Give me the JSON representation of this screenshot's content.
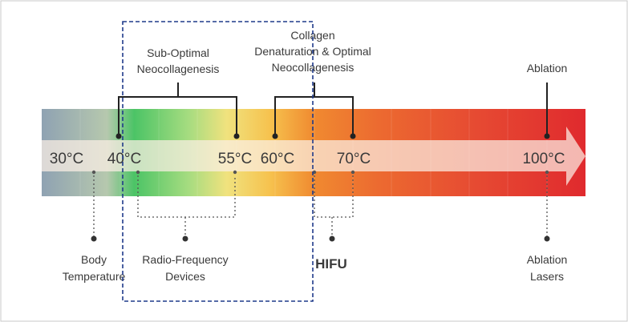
{
  "temperatures": [
    "30°C",
    "40°C",
    "55°C",
    "60°C",
    "70°C",
    "100°C"
  ],
  "upper_labels": {
    "sub_optimal": [
      "Sub-Optimal",
      "Neocollagenesis"
    ],
    "optimal": [
      "Collagen",
      "Denaturation & Optimal",
      "Neocollagenesis"
    ],
    "ablation": "Ablation"
  },
  "lower_labels": {
    "body": [
      "Body",
      "Temperature"
    ],
    "rf": [
      "Radio-Frequency",
      "Devices"
    ],
    "hifu": "HIFU",
    "lasers": [
      "Ablation",
      "Lasers"
    ]
  },
  "colors": {
    "bar_gradient": [
      "#8fa2b2",
      "#b6c8ae",
      "#4cc466",
      "#a6dc80",
      "#f0e27e",
      "#f6c24e",
      "#f08a30",
      "#ec6a30",
      "#e64a32",
      "#e02a2e"
    ],
    "arrow": "#fbeee4",
    "highlight_box": "#1f3a8a"
  }
}
